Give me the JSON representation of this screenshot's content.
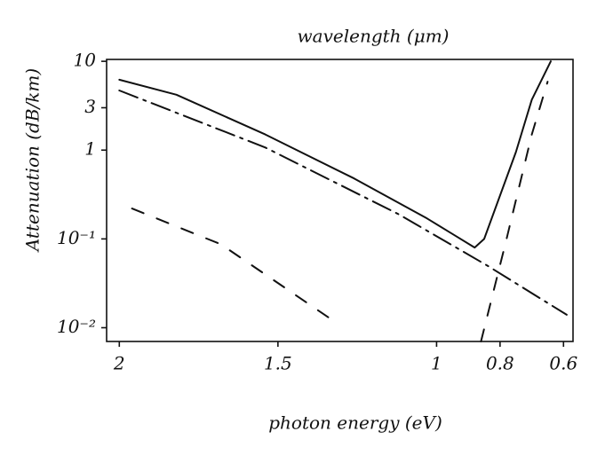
{
  "chart_data": {
    "type": "line",
    "x_label": "photon energy (eV)",
    "y_label": "Attenuation (dB/km)",
    "top_label": "wavelength (μm)",
    "xlim": [
      2.04,
      0.57
    ],
    "xticks": [
      2,
      1.5,
      1,
      0.8,
      0.6
    ],
    "ylim": [
      0.007,
      10.5
    ],
    "yticks": [
      {
        "value": 0.01,
        "label": "10⁻²"
      },
      {
        "value": 0.1,
        "label": "10⁻¹"
      },
      1,
      3,
      10
    ],
    "log_y": true,
    "series": [
      {
        "color": "#111111",
        "dash": "solid",
        "x": [
          2.0,
          1.82,
          1.54,
          1.26,
          1.03,
          0.88,
          0.85,
          0.75,
          0.7,
          0.64
        ],
        "values": [
          6.2,
          4.2,
          1.5,
          0.48,
          0.17,
          0.08,
          0.1,
          0.95,
          3.7,
          10
        ]
      },
      {
        "color": "#111111",
        "dash": "dashdot",
        "x": [
          2.0,
          1.54,
          1.12,
          0.84,
          0.59
        ],
        "values": [
          4.7,
          1.07,
          0.19,
          0.05,
          0.014
        ]
      },
      {
        "color": "#111111",
        "dash": "dashed",
        "x": [
          1.96,
          1.68,
          1.31
        ],
        "values": [
          0.22,
          0.087,
          0.011
        ]
      },
      {
        "color": "#111111",
        "dash": "dashed",
        "x": [
          0.86,
          0.78,
          0.7,
          0.65
        ],
        "values": [
          0.007,
          0.098,
          1.5,
          5.9
        ]
      }
    ]
  }
}
